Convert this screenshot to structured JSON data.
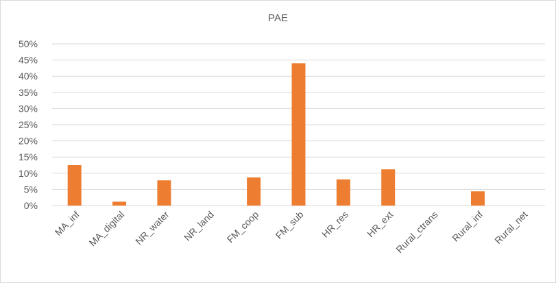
{
  "chart_data": {
    "type": "bar",
    "title": "PAE",
    "xlabel": "",
    "ylabel": "",
    "categories": [
      "MA_inf",
      "MA_digital",
      "NR_water",
      "NR_land",
      "FM_coop",
      "FM_sub",
      "HR_res",
      "HR_ext",
      "Rural_ctrans",
      "Rural_inf",
      "Rural_net"
    ],
    "values": [
      12.5,
      1.2,
      7.8,
      0,
      8.7,
      44.0,
      8.1,
      11.2,
      0,
      4.4,
      0
    ],
    "ylim": [
      0,
      50
    ],
    "yticks": [
      0,
      5,
      10,
      15,
      20,
      25,
      30,
      35,
      40,
      45,
      50
    ],
    "ytick_labels": [
      "0%",
      "5%",
      "10%",
      "15%",
      "20%",
      "25%",
      "30%",
      "35%",
      "40%",
      "45%",
      "50%"
    ],
    "grid": true,
    "legend": "none",
    "bar_color": "#ED7D31",
    "grid_color": "#d9d9d9",
    "text_color": "#595959"
  }
}
